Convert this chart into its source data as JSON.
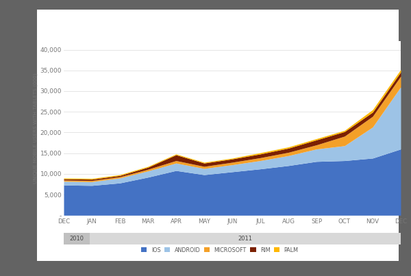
{
  "months": [
    "DEC",
    "JAN",
    "FEB",
    "MAR",
    "APR",
    "MAY",
    "JUN",
    "JUL",
    "AUG",
    "SEP",
    "OCT",
    "NOV",
    "DEC"
  ],
  "ios": [
    7300,
    7200,
    7800,
    9200,
    10800,
    9800,
    10500,
    11200,
    12000,
    13000,
    13200,
    13800,
    16000
  ],
  "android": [
    900,
    900,
    1200,
    1500,
    1800,
    1500,
    1700,
    2000,
    2400,
    3000,
    3600,
    7500,
    15000
  ],
  "microsoft": [
    300,
    300,
    300,
    400,
    600,
    500,
    600,
    700,
    800,
    1000,
    2300,
    2600,
    2600
  ],
  "rim": [
    300,
    300,
    300,
    500,
    1400,
    800,
    800,
    900,
    1000,
    1200,
    1100,
    1000,
    1000
  ],
  "palm": [
    200,
    200,
    200,
    200,
    200,
    200,
    200,
    300,
    300,
    300,
    300,
    600,
    600
  ],
  "ios_color": "#4472C4",
  "android_color": "#9DC3E6",
  "microsoft_color": "#F4A028",
  "rim_color": "#7B2000",
  "palm_color": "#FFB800",
  "bg_outer": "#636363",
  "bg_chart": "#ffffff",
  "ylabel": "UNIQUE MOBILE USERS WITH TABLETS (000)",
  "ylim": [
    0,
    42000
  ],
  "ytick_vals": [
    0,
    5000,
    10000,
    15000,
    20000,
    25000,
    30000,
    35000,
    40000
  ],
  "ytick_labels": [
    "-",
    "5,000",
    "10,000",
    "15,000",
    "20,000",
    "25,000",
    "30,000",
    "35,000",
    "40,000"
  ],
  "legend_labels": [
    "IOS",
    "ANDROID",
    "MICROSOFT",
    "RIM",
    "PALM"
  ],
  "panel_facecolor": "#ffffff",
  "panel_edgecolor": "#cccccc",
  "year_2010_color": "#c0c0c0",
  "year_2011_color": "#d8d8d8",
  "tick_color": "#777777",
  "grid_color": "#e0e0e0"
}
